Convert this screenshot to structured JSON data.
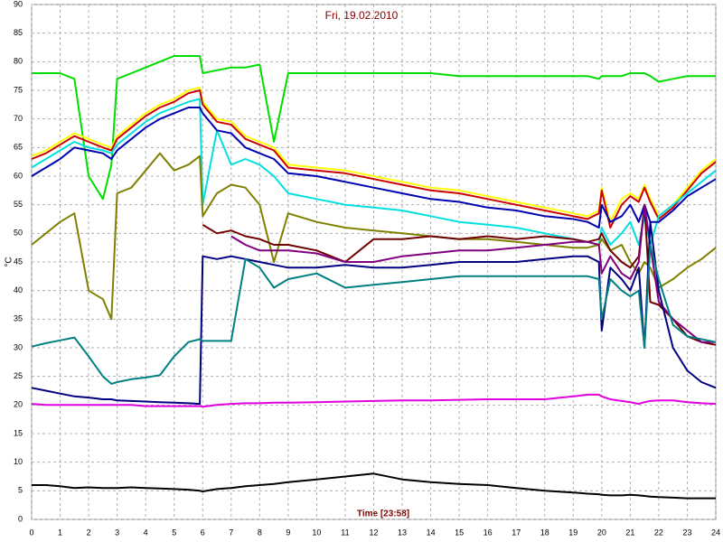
{
  "chart_data": {
    "type": "line",
    "title": "Fri, 19.02.2010",
    "x_label": "Time [23:58]",
    "y_label": "°C",
    "x": [
      0,
      0.5,
      1,
      1.5,
      2,
      2.5,
      2.8,
      3,
      3.5,
      4,
      4.5,
      5,
      5.5,
      5.9,
      6,
      6.5,
      7,
      7.5,
      8,
      8.5,
      9,
      10,
      11,
      12,
      13,
      14,
      15,
      16,
      17,
      18,
      19,
      19.5,
      19.9,
      20,
      20.3,
      20.7,
      21,
      21.3,
      21.5,
      21.7,
      22,
      22.5,
      23,
      23.5,
      24
    ],
    "xlim": [
      0,
      24
    ],
    "xticks": [
      0,
      1,
      2,
      3,
      4,
      5,
      6,
      7,
      8,
      9,
      10,
      11,
      12,
      13,
      14,
      15,
      16,
      17,
      18,
      19,
      20,
      21,
      22,
      23,
      24
    ],
    "ylim": [
      0,
      90
    ],
    "yticks": [
      0,
      5,
      10,
      15,
      20,
      25,
      30,
      35,
      40,
      45,
      50,
      55,
      60,
      65,
      70,
      75,
      80,
      85,
      90
    ],
    "grid": true,
    "series": [
      {
        "color": "#00dd00",
        "values": [
          78,
          78,
          78,
          77,
          60,
          56,
          62,
          77,
          78,
          79,
          80,
          81,
          81,
          81,
          78,
          78.5,
          79,
          79,
          79.5,
          66,
          78,
          78,
          78,
          78,
          78,
          78,
          77.5,
          77.5,
          77.5,
          77.5,
          77.5,
          77.5,
          77,
          77.5,
          77.5,
          77.5,
          78,
          78,
          78,
          77.5,
          76.5,
          77,
          77.5,
          77.5,
          77.5
        ]
      },
      {
        "color": "#ffff00",
        "values": [
          63.5,
          64.5,
          66,
          67.5,
          66.5,
          65.5,
          65,
          67,
          69,
          71,
          72.5,
          73.5,
          75,
          75.5,
          73,
          70,
          69.5,
          67,
          66,
          65,
          62,
          61.5,
          61,
          60,
          59,
          58,
          57.5,
          56.5,
          55.5,
          54.5,
          53.5,
          53,
          54,
          58,
          52,
          56,
          57,
          56,
          58.5,
          56,
          53,
          55,
          58,
          61,
          63
        ]
      },
      {
        "color": "#cc0000",
        "values": [
          63,
          64,
          65.5,
          67,
          66,
          65,
          64.5,
          66.5,
          68.5,
          70.5,
          72,
          73,
          74.5,
          75,
          72.5,
          69.5,
          69,
          66.5,
          65.5,
          64.5,
          61.5,
          61,
          60.5,
          59.5,
          58.5,
          57.5,
          57,
          56,
          55,
          54,
          53,
          52.5,
          53.5,
          57.5,
          51,
          55,
          56.5,
          55.5,
          58,
          55.5,
          52.5,
          54.5,
          57.5,
          60.5,
          62.5
        ]
      },
      {
        "color": "#00e0e0",
        "values": [
          61.5,
          63,
          64.5,
          66,
          65,
          64.5,
          64,
          65.5,
          67.5,
          69.5,
          71,
          72,
          73,
          73.5,
          55,
          68,
          62,
          63,
          62,
          60,
          57,
          56,
          55,
          54.5,
          54,
          53,
          52,
          51.5,
          51,
          50,
          49,
          48.5,
          48,
          51,
          48,
          50,
          52,
          48,
          53,
          48,
          53,
          55,
          57,
          59,
          61
        ]
      },
      {
        "color": "#0000b0",
        "values": [
          60,
          61.5,
          63,
          65,
          64.5,
          64,
          63,
          64.5,
          66.5,
          68.5,
          70,
          71,
          72,
          72,
          71,
          68,
          67.5,
          65,
          64,
          63,
          60.5,
          60,
          59,
          58,
          57,
          56,
          55.5,
          54.5,
          54,
          53,
          52.5,
          52,
          51,
          55,
          52,
          53,
          55,
          52,
          55,
          52,
          52,
          54,
          56.5,
          58,
          59.5
        ]
      },
      {
        "color": "#808000",
        "values": [
          48,
          50,
          52,
          53.5,
          40,
          38.5,
          35,
          57,
          58,
          61,
          64,
          61,
          62,
          63.5,
          53,
          57,
          58.5,
          58,
          55,
          45,
          53.5,
          52,
          51,
          50.5,
          50,
          49.5,
          49,
          49,
          48.5,
          48,
          47.5,
          47.5,
          48,
          49,
          47,
          48,
          45,
          43,
          45,
          44,
          40.5,
          42,
          44,
          45.5,
          47.5
        ]
      },
      {
        "color": "#700000",
        "values": [
          null,
          null,
          null,
          null,
          null,
          null,
          null,
          null,
          null,
          null,
          null,
          null,
          null,
          null,
          51.5,
          50,
          50.5,
          49.5,
          49,
          48,
          48,
          47,
          45,
          49,
          49,
          49.5,
          49,
          49.5,
          49,
          49.5,
          49,
          48.5,
          49,
          50,
          47,
          45,
          44,
          46,
          55,
          38,
          37.5,
          35,
          32,
          31,
          30.5
        ]
      },
      {
        "color": "#800080",
        "values": [
          null,
          null,
          null,
          null,
          null,
          null,
          null,
          null,
          null,
          null,
          null,
          null,
          null,
          null,
          null,
          null,
          49.5,
          48,
          47,
          47,
          47,
          46.5,
          45,
          45,
          46,
          46.5,
          47,
          47,
          47.5,
          48,
          48.5,
          48.5,
          48,
          43,
          46,
          43,
          42,
          45,
          55,
          48,
          38,
          35,
          33,
          31,
          31
        ]
      },
      {
        "color": "#000080",
        "values": [
          23,
          22.5,
          22,
          21.5,
          21.3,
          21,
          21,
          20.8,
          20.7,
          20.6,
          20.5,
          20.4,
          20.3,
          20.2,
          46,
          45.5,
          46,
          45.5,
          45,
          44.5,
          44,
          44,
          44.5,
          44,
          44,
          44.5,
          45,
          45,
          45,
          45.5,
          46,
          46,
          45,
          33,
          44,
          42,
          40,
          44,
          30,
          52,
          40,
          30,
          26,
          24,
          23
        ]
      },
      {
        "color": "#008080",
        "values": [
          30.2,
          30.8,
          31.3,
          31.8,
          28.5,
          25,
          23.7,
          24,
          24.5,
          24.8,
          25.2,
          28.5,
          31,
          31.5,
          31.2,
          31.2,
          31.2,
          45.5,
          44,
          40.5,
          42,
          43,
          40.5,
          41,
          41.5,
          42,
          42.5,
          42.5,
          42.5,
          42.5,
          42.5,
          42.5,
          42,
          35,
          42,
          40,
          39,
          40,
          30,
          48,
          42,
          34,
          32,
          31.5,
          31
        ]
      },
      {
        "color": "#e000e0",
        "values": [
          20.2,
          20,
          20,
          20,
          20,
          20,
          20,
          20,
          20,
          19.8,
          19.8,
          19.8,
          19.8,
          19.8,
          19.7,
          20,
          20.2,
          20.3,
          20.3,
          20.4,
          20.4,
          20.5,
          20.6,
          20.7,
          20.8,
          20.8,
          20.9,
          21,
          21,
          21,
          21.5,
          21.8,
          21.8,
          21.5,
          21,
          20.7,
          20.5,
          20.2,
          20.5,
          20.7,
          20.8,
          20.8,
          20.5,
          20.3,
          20.2
        ]
      },
      {
        "color": "#000000",
        "values": [
          6,
          6,
          5.8,
          5.5,
          5.6,
          5.5,
          5.5,
          5.5,
          5.6,
          5.5,
          5.4,
          5.3,
          5.2,
          5,
          4.9,
          5.3,
          5.5,
          5.8,
          6,
          6.2,
          6.5,
          7,
          7.5,
          8,
          7,
          6.5,
          6.2,
          6,
          5.5,
          5,
          4.7,
          4.5,
          4.4,
          4.3,
          4.2,
          4.2,
          4.3,
          4.2,
          4.1,
          4,
          3.9,
          3.8,
          3.7,
          3.7,
          3.7
        ]
      }
    ]
  }
}
